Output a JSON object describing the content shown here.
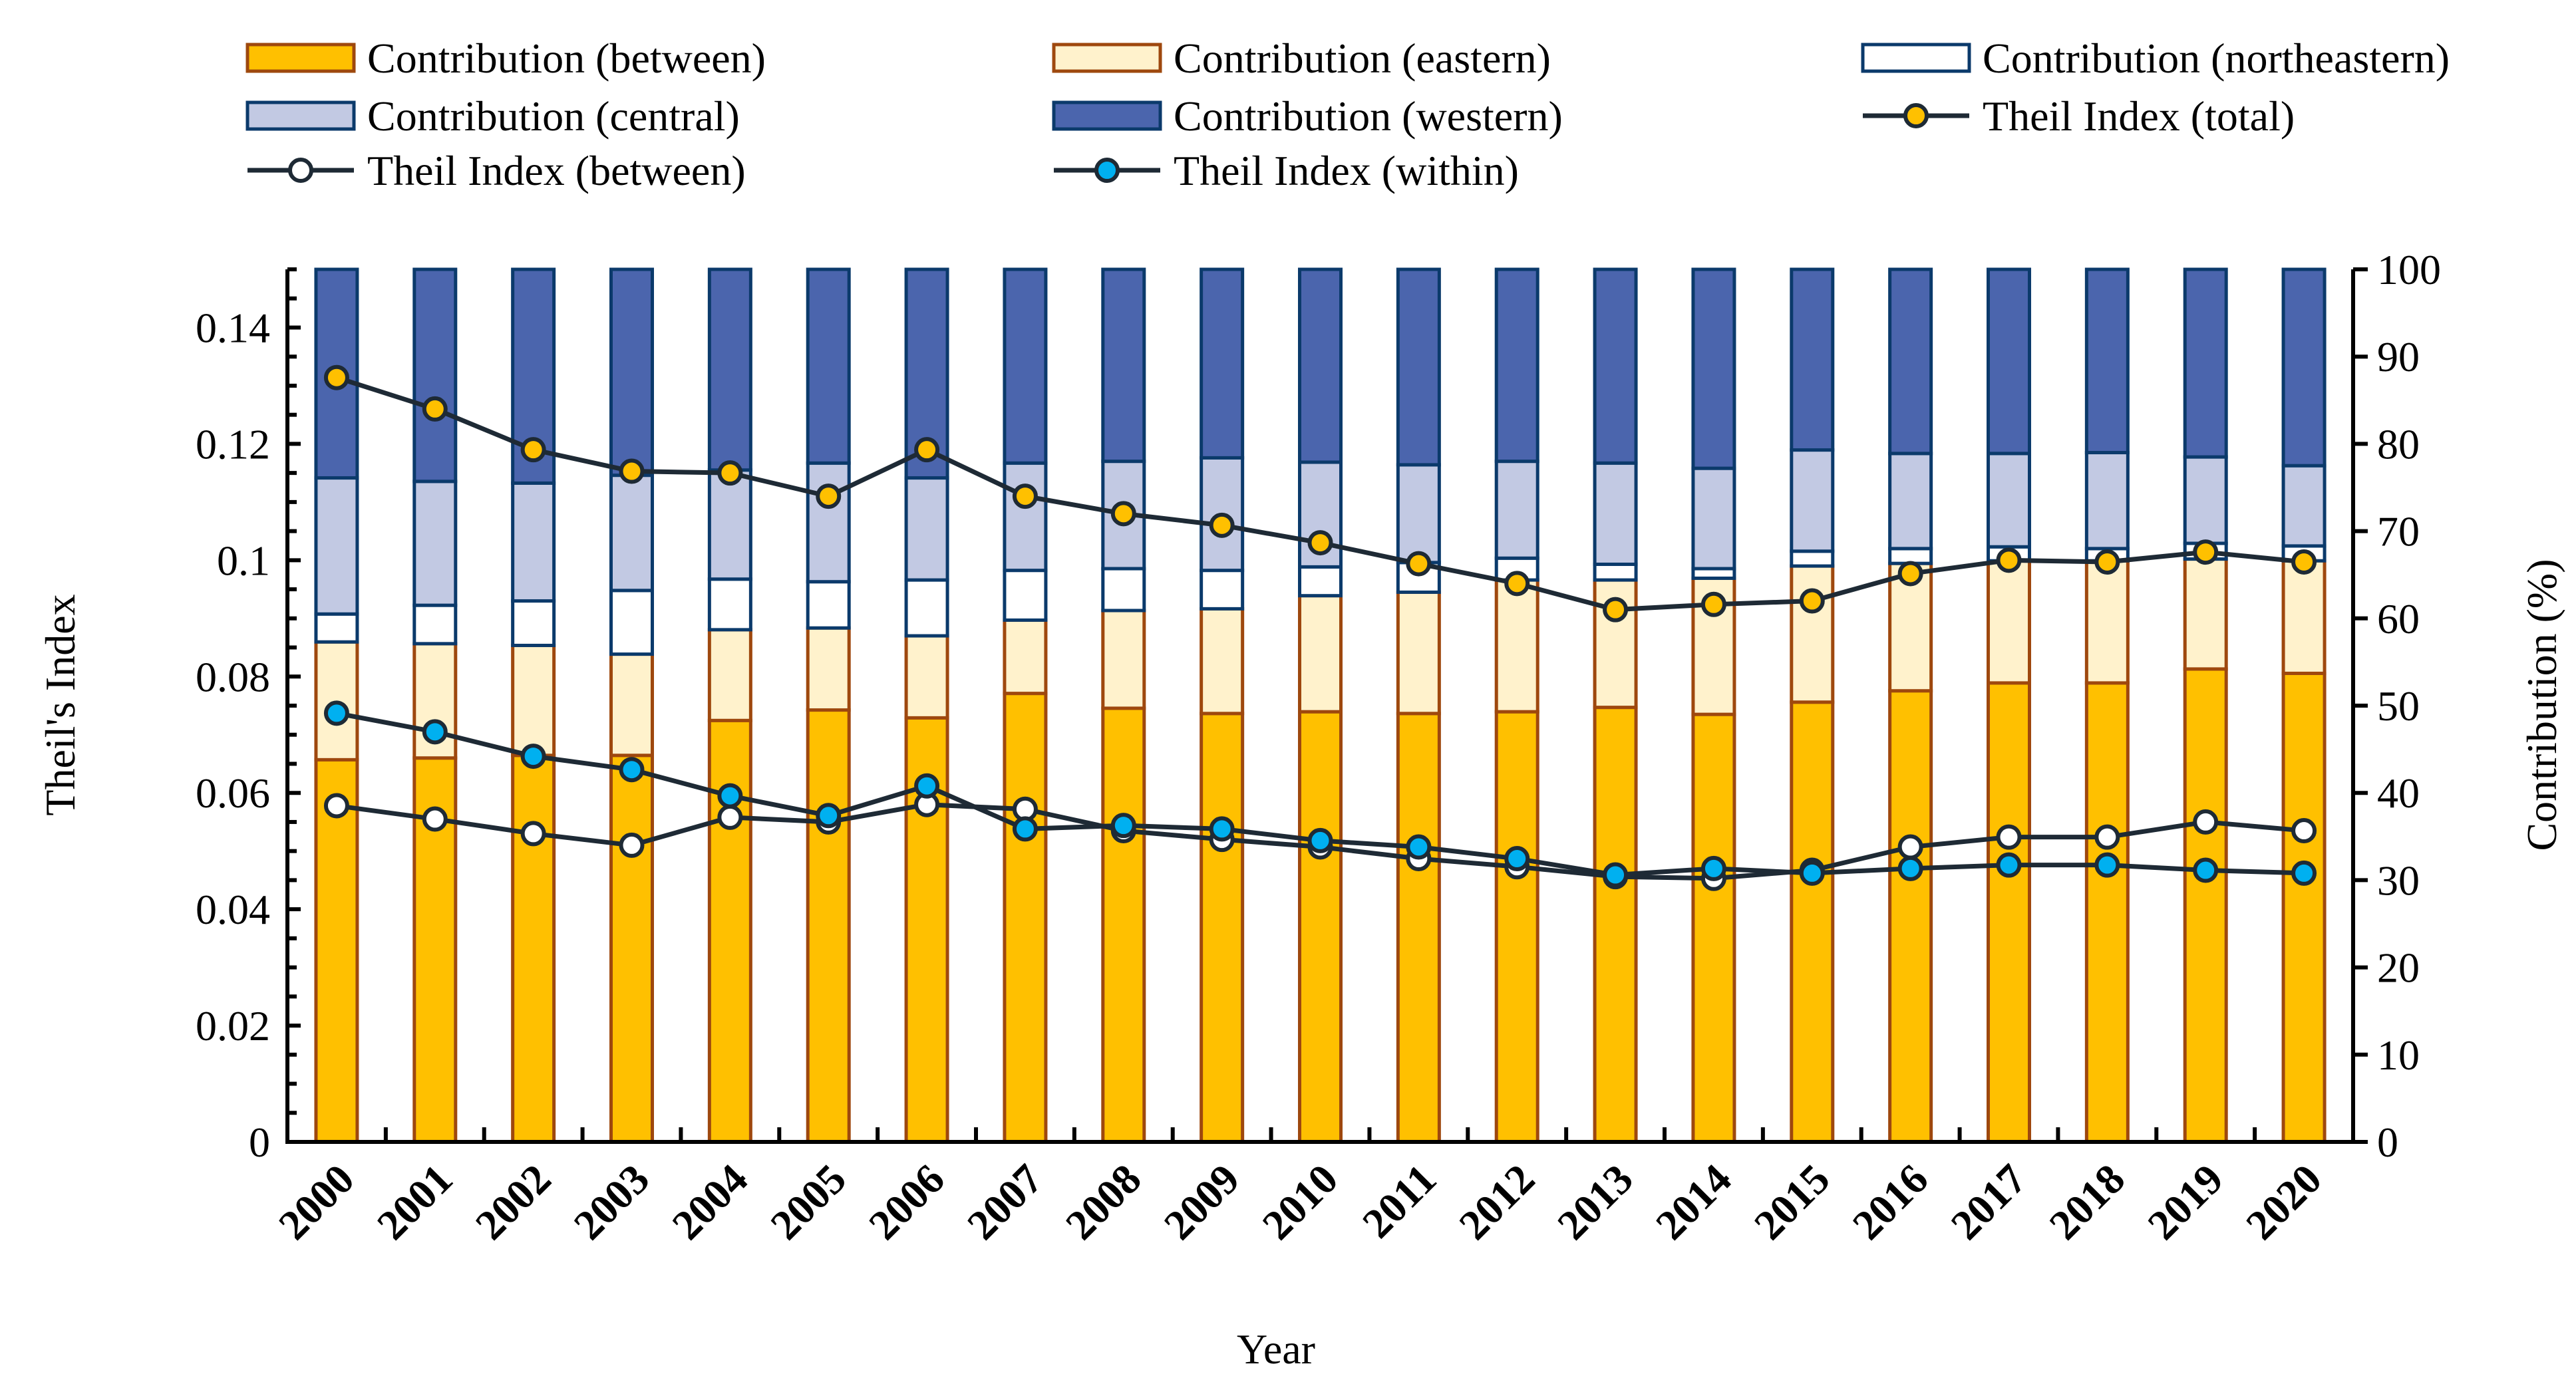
{
  "chart_data": {
    "type": "bar",
    "subtype": "stacked bar (right axis) with lines (left axis)",
    "title": "",
    "xlabel": "Year",
    "ylabel": "Theil's Index",
    "y2label": "Contribution (%)",
    "ylim": [
      0,
      0.15
    ],
    "y2lim": [
      0,
      100
    ],
    "yticks": [
      "0",
      "0.02",
      "0.04",
      "0.06",
      "0.08",
      "0.1",
      "0.12",
      "0.14"
    ],
    "y2ticks": [
      "0",
      "10",
      "20",
      "30",
      "40",
      "50",
      "60",
      "70",
      "80",
      "90",
      "100"
    ],
    "legend_position": "top",
    "categories": [
      "2000",
      "2001",
      "2002",
      "2003",
      "2004",
      "2005",
      "2006",
      "2007",
      "2008",
      "2009",
      "2010",
      "2011",
      "2012",
      "2013",
      "2014",
      "2015",
      "2016",
      "2017",
      "2018",
      "2019",
      "2020"
    ],
    "bar_series": [
      {
        "name": "Contribution (between)",
        "fill": "#FFC000",
        "stroke": "#9E480E",
        "values": [
          43.8,
          44.0,
          44.3,
          44.3,
          48.3,
          49.5,
          48.6,
          51.4,
          49.7,
          49.1,
          49.3,
          49.1,
          49.3,
          49.8,
          49.0,
          50.4,
          51.7,
          52.6,
          52.6,
          54.2,
          53.7
        ]
      },
      {
        "name": "Contribution (eastern)",
        "fill": "#FFF2CC",
        "stroke": "#9E480E",
        "values": [
          13.5,
          13.1,
          12.6,
          11.6,
          10.4,
          9.4,
          9.4,
          8.4,
          11.2,
          12.0,
          13.3,
          13.9,
          15.1,
          14.6,
          15.6,
          15.6,
          14.6,
          14.0,
          14.0,
          12.6,
          12.9
        ]
      },
      {
        "name": "Contribution (northeastern)",
        "fill": "#FFFFFF",
        "stroke": "#0B3A6B",
        "values": [
          3.2,
          4.4,
          5.1,
          7.3,
          5.8,
          5.3,
          6.4,
          5.7,
          4.8,
          4.4,
          3.3,
          3.4,
          2.5,
          1.8,
          1.1,
          1.7,
          1.7,
          1.6,
          1.4,
          1.8,
          1.7
        ]
      },
      {
        "name": "Contribution (central)",
        "fill": "#C2C9E3",
        "stroke": "#0B3A6B",
        "values": [
          15.6,
          14.2,
          13.5,
          13.2,
          12.5,
          13.6,
          11.7,
          12.3,
          12.3,
          12.9,
          12.0,
          11.2,
          11.1,
          11.6,
          11.5,
          11.6,
          10.9,
          10.7,
          11.0,
          9.9,
          9.2
        ]
      },
      {
        "name": "Contribution (western)",
        "fill": "#4B65AD",
        "stroke": "#0B3A6B",
        "values": [
          23.9,
          24.3,
          24.5,
          23.6,
          23.0,
          22.2,
          23.9,
          22.2,
          22.0,
          21.6,
          22.1,
          22.4,
          22.0,
          22.2,
          22.8,
          20.7,
          21.1,
          21.1,
          21.0,
          21.5,
          22.5
        ]
      }
    ],
    "line_series": [
      {
        "name": "Theil Index (total)",
        "marker_fill": "#FFC000",
        "values": [
          0.1314,
          0.126,
          0.119,
          0.1153,
          0.115,
          0.111,
          0.119,
          0.111,
          0.108,
          0.106,
          0.103,
          0.0994,
          0.096,
          0.0915,
          0.0924,
          0.093,
          0.0977,
          0.1,
          0.0997,
          0.1014,
          0.0997
        ]
      },
      {
        "name": "Theil Index (between)",
        "marker_fill": "#FFFFFF",
        "values": [
          0.0578,
          0.0555,
          0.053,
          0.051,
          0.0558,
          0.055,
          0.058,
          0.0572,
          0.0535,
          0.052,
          0.0507,
          0.0487,
          0.0473,
          0.0456,
          0.0453,
          0.0467,
          0.0507,
          0.0524,
          0.0524,
          0.055,
          0.0535
        ]
      },
      {
        "name": "Theil Index (within)",
        "marker_fill": "#00B0F0",
        "values": [
          0.0737,
          0.0705,
          0.0663,
          0.064,
          0.0595,
          0.0561,
          0.0612,
          0.0538,
          0.0544,
          0.0538,
          0.0518,
          0.0507,
          0.0487,
          0.0459,
          0.047,
          0.0462,
          0.047,
          0.0476,
          0.0476,
          0.0467,
          0.0462
        ]
      }
    ],
    "line_color": "#1E2A35"
  }
}
